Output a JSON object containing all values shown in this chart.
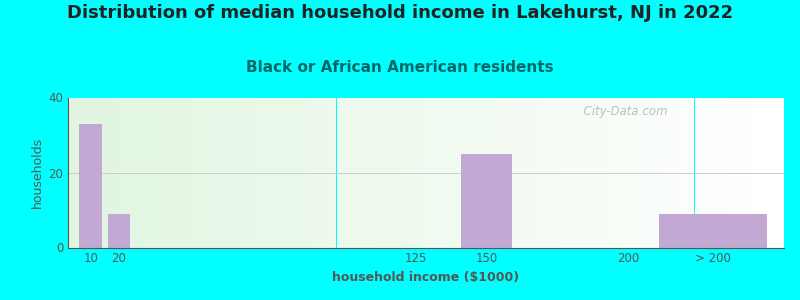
{
  "title": "Distribution of median household income in Lakehurst, NJ in 2022",
  "subtitle": "Black or African American residents",
  "xlabel": "household income ($1000)",
  "ylabel": "households",
  "background_outer": "#00FFFF",
  "bar_color": "#C4A8D4",
  "tick_labels": [
    "10",
    "20",
    "125",
    "150",
    "200",
    "> 200"
  ],
  "tick_positions": [
    10,
    20,
    125,
    150,
    200,
    230
  ],
  "bar_centers": [
    10,
    20,
    125,
    150,
    200,
    230
  ],
  "bar_widths": [
    8,
    8,
    8,
    18,
    8,
    38
  ],
  "values": [
    33,
    9,
    0,
    25,
    0,
    9
  ],
  "xlim": [
    2,
    255
  ],
  "ylim": [
    0,
    40
  ],
  "yticks": [
    0,
    20,
    40
  ],
  "grid_color": "#CCCCCC",
  "title_fontsize": 13,
  "subtitle_fontsize": 11,
  "axis_label_fontsize": 9,
  "tick_fontsize": 8.5,
  "title_color": "#222222",
  "subtitle_color": "#006666",
  "axis_color": "#555555",
  "watermark": "  City-Data.com"
}
